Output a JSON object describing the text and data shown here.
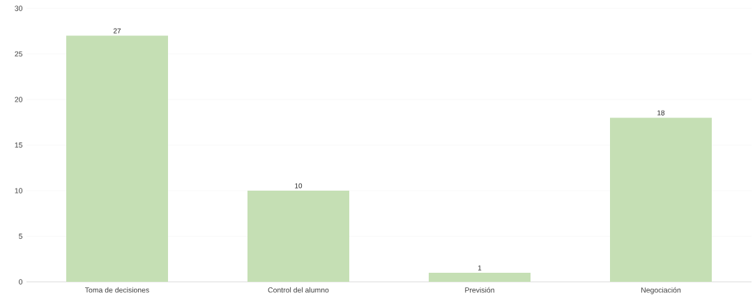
{
  "chart_data": {
    "type": "bar",
    "categories": [
      "Toma de decisiones",
      "Control del alumno",
      "Previsión",
      "Negociación"
    ],
    "values": [
      27,
      10,
      1,
      18
    ],
    "color": "#c5dfb4",
    "ylim": [
      0,
      30
    ],
    "yticks": [
      0,
      5,
      10,
      15,
      20,
      25,
      30
    ],
    "grid": "y",
    "data_labels": true
  }
}
